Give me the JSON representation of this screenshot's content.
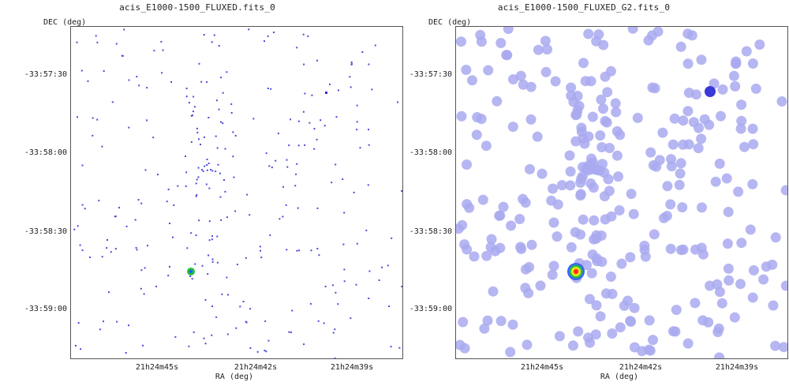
{
  "left": {
    "title": "acis_E1000-1500_FLUXED.fits_0",
    "y_axis_label": "DEC (deg)",
    "x_axis_label": "RA (deg)",
    "y_ticks": [
      "-33:57:30",
      "-33:58:00",
      "-33:58:30",
      "-33:59:00"
    ],
    "x_ticks": [
      "21h24m45s",
      "21h24m42s",
      "21h24m39s"
    ]
  },
  "right": {
    "title": "acis_E1000-1500_FLUXED_G2.fits_0",
    "y_axis_label": "DEC (deg)",
    "x_axis_label": "RA (deg)",
    "y_ticks": [
      "-33:57:30",
      "-33:58:00",
      "-33:58:30",
      "-33:59:00"
    ],
    "x_ticks": [
      "21h24m45s",
      "21h24m42s",
      "21h24m39s"
    ]
  },
  "colors": {
    "event": "#4a4ad8",
    "smoothed": "#a9a9f0",
    "source_core": "#ff2020",
    "source_ring": "#20c040"
  }
}
